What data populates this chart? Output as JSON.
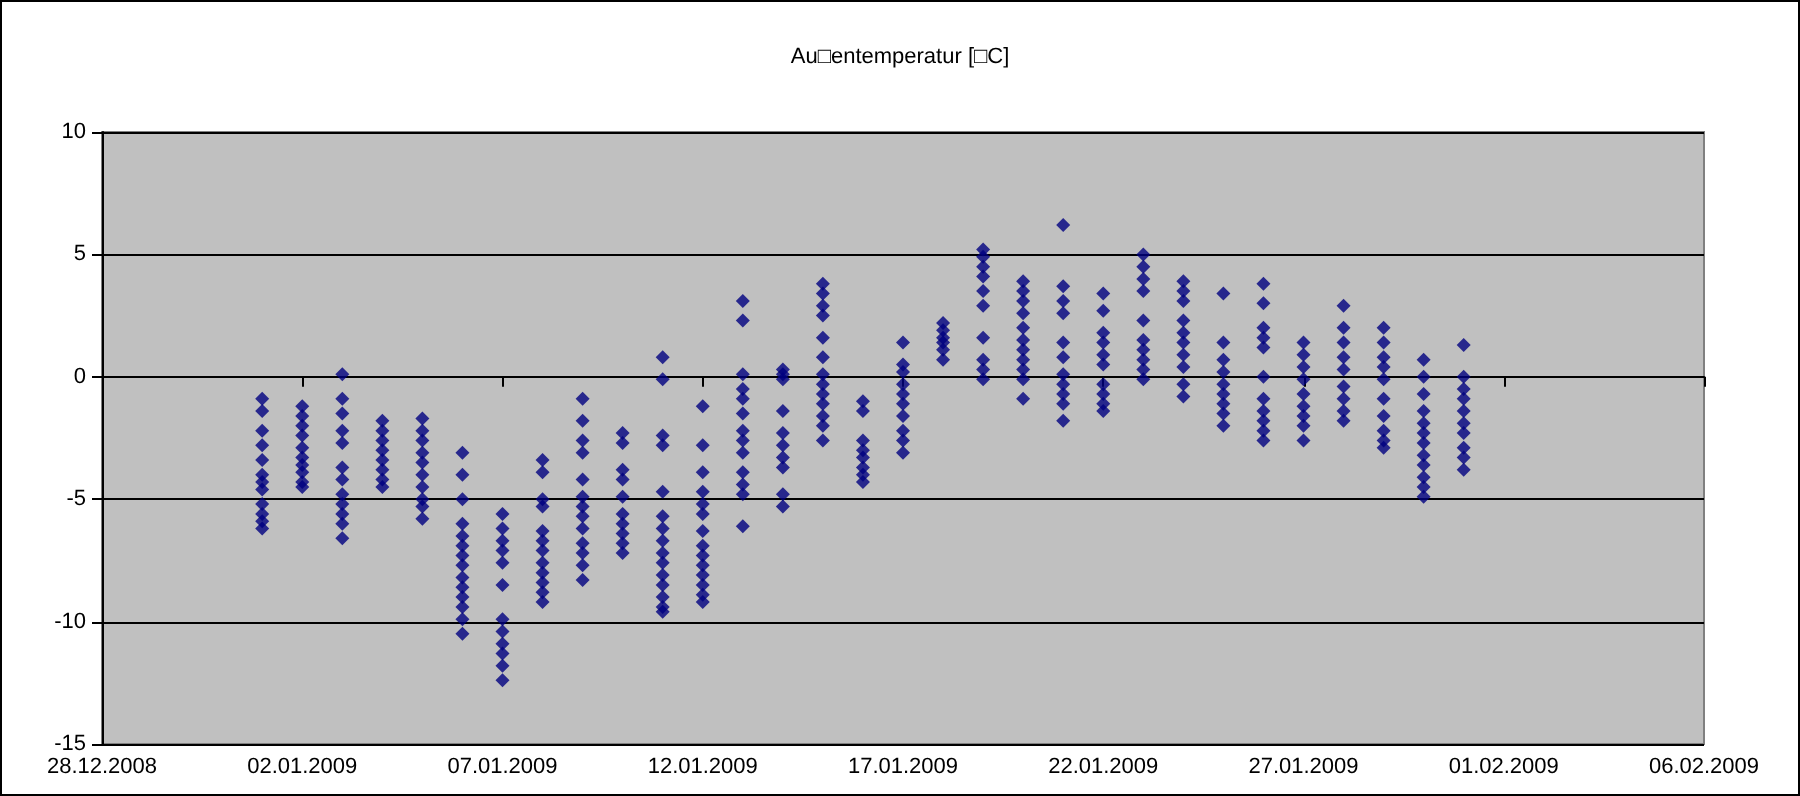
{
  "chart_data": {
    "type": "scatter",
    "title": "Au□entemperatur [□C]",
    "marker": "diamond",
    "grid": "y",
    "xlim": [
      "2008-12-28",
      "2009-02-06"
    ],
    "xticks": [
      {
        "value": "2008-12-28",
        "label": "28.12.2008"
      },
      {
        "value": "2009-01-02",
        "label": "02.01.2009"
      },
      {
        "value": "2009-01-07",
        "label": "07.01.2009"
      },
      {
        "value": "2009-01-12",
        "label": "12.01.2009"
      },
      {
        "value": "2009-01-17",
        "label": "17.01.2009"
      },
      {
        "value": "2009-01-22",
        "label": "22.01.2009"
      },
      {
        "value": "2009-01-27",
        "label": "27.01.2009"
      },
      {
        "value": "2009-02-01",
        "label": "01.02.2009"
      },
      {
        "value": "2009-02-06",
        "label": "06.02.2009"
      }
    ],
    "ylim": [
      -15,
      10
    ],
    "yticks": [
      -15,
      -10,
      -5,
      0,
      5,
      10
    ],
    "series": [
      {
        "color": "#000080",
        "x": [
          "2009-01-01",
          "2009-01-01",
          "2009-01-01",
          "2009-01-01",
          "2009-01-01",
          "2009-01-01",
          "2009-01-01",
          "2009-01-01",
          "2009-01-01",
          "2009-01-01",
          "2009-01-01",
          "2009-01-01"
        ],
        "values": [
          -0.9,
          -1.4,
          -2.2,
          -2.8,
          -3.4,
          -4.0,
          -4.3,
          -4.6,
          -5.2,
          -5.6,
          -5.9,
          -6.2
        ]
      },
      {
        "color": "#000080",
        "x": [
          "2009-01-02",
          "2009-01-02",
          "2009-01-02",
          "2009-01-02",
          "2009-01-02",
          "2009-01-02",
          "2009-01-02",
          "2009-01-02",
          "2009-01-02",
          "2009-01-02"
        ],
        "values": [
          -1.2,
          -1.6,
          -2.0,
          -2.4,
          -2.9,
          -3.3,
          -3.6,
          -3.9,
          -4.3,
          -4.5
        ]
      },
      {
        "color": "#000080",
        "x": [
          "2009-01-03",
          "2009-01-03",
          "2009-01-03",
          "2009-01-03",
          "2009-01-03",
          "2009-01-03",
          "2009-01-03",
          "2009-01-03",
          "2009-01-03",
          "2009-01-03",
          "2009-01-03",
          "2009-01-03"
        ],
        "values": [
          0.1,
          -0.9,
          -1.5,
          -2.2,
          -2.7,
          -3.7,
          -4.2,
          -4.8,
          -5.2,
          -5.6,
          -6.0,
          -6.6
        ]
      },
      {
        "color": "#000080",
        "x": [
          "2009-01-04",
          "2009-01-04",
          "2009-01-04",
          "2009-01-04",
          "2009-01-04",
          "2009-01-04",
          "2009-01-04",
          "2009-01-04"
        ],
        "values": [
          -1.8,
          -2.2,
          -2.6,
          -3.0,
          -3.4,
          -3.8,
          -4.2,
          -4.5
        ]
      },
      {
        "color": "#000080",
        "x": [
          "2009-01-05",
          "2009-01-05",
          "2009-01-05",
          "2009-01-05",
          "2009-01-05",
          "2009-01-05",
          "2009-01-05",
          "2009-01-05",
          "2009-01-05",
          "2009-01-05"
        ],
        "values": [
          -1.7,
          -2.2,
          -2.6,
          -3.1,
          -3.5,
          -4.0,
          -4.5,
          -5.0,
          -5.3,
          -5.8
        ]
      },
      {
        "color": "#000080",
        "x": [
          "2009-01-06",
          "2009-01-06",
          "2009-01-06",
          "2009-01-06",
          "2009-01-06",
          "2009-01-06",
          "2009-01-06",
          "2009-01-06",
          "2009-01-06",
          "2009-01-06",
          "2009-01-06",
          "2009-01-06",
          "2009-01-06",
          "2009-01-06"
        ],
        "values": [
          -3.1,
          -4.0,
          -5.0,
          -6.0,
          -6.5,
          -6.9,
          -7.3,
          -7.7,
          -8.2,
          -8.6,
          -9.0,
          -9.4,
          -9.9,
          -10.5
        ]
      },
      {
        "color": "#000080",
        "x": [
          "2009-01-07",
          "2009-01-07",
          "2009-01-07",
          "2009-01-07",
          "2009-01-07",
          "2009-01-07",
          "2009-01-07",
          "2009-01-07",
          "2009-01-07",
          "2009-01-07",
          "2009-01-07",
          "2009-01-07"
        ],
        "values": [
          -5.6,
          -6.2,
          -6.7,
          -7.1,
          -7.6,
          -8.5,
          -9.9,
          -10.4,
          -10.9,
          -11.3,
          -11.8,
          -12.4
        ]
      },
      {
        "color": "#000080",
        "x": [
          "2009-01-08",
          "2009-01-08",
          "2009-01-08",
          "2009-01-08",
          "2009-01-08",
          "2009-01-08",
          "2009-01-08",
          "2009-01-08",
          "2009-01-08",
          "2009-01-08",
          "2009-01-08",
          "2009-01-08"
        ],
        "values": [
          -3.4,
          -3.9,
          -5.0,
          -5.3,
          -6.3,
          -6.7,
          -7.1,
          -7.6,
          -8.0,
          -8.4,
          -8.8,
          -9.2
        ]
      },
      {
        "color": "#000080",
        "x": [
          "2009-01-09",
          "2009-01-09",
          "2009-01-09",
          "2009-01-09",
          "2009-01-09",
          "2009-01-09",
          "2009-01-09",
          "2009-01-09",
          "2009-01-09",
          "2009-01-09",
          "2009-01-09",
          "2009-01-09",
          "2009-01-09"
        ],
        "values": [
          -0.9,
          -1.8,
          -2.6,
          -3.1,
          -4.2,
          -4.9,
          -5.3,
          -5.7,
          -6.2,
          -6.8,
          -7.2,
          -7.7,
          -8.3
        ]
      },
      {
        "color": "#000080",
        "x": [
          "2009-01-10",
          "2009-01-10",
          "2009-01-10",
          "2009-01-10",
          "2009-01-10",
          "2009-01-10",
          "2009-01-10",
          "2009-01-10",
          "2009-01-10",
          "2009-01-10"
        ],
        "values": [
          -2.3,
          -2.7,
          -3.8,
          -4.2,
          -4.9,
          -5.6,
          -6.0,
          -6.4,
          -6.8,
          -7.2
        ]
      },
      {
        "color": "#000080",
        "x": [
          "2009-01-11",
          "2009-01-11",
          "2009-01-11",
          "2009-01-11",
          "2009-01-11",
          "2009-01-11",
          "2009-01-11",
          "2009-01-11",
          "2009-01-11",
          "2009-01-11",
          "2009-01-11",
          "2009-01-11",
          "2009-01-11",
          "2009-01-11",
          "2009-01-11"
        ],
        "values": [
          0.8,
          -0.1,
          -2.4,
          -2.8,
          -4.7,
          -5.7,
          -6.2,
          -6.7,
          -7.2,
          -7.6,
          -8.1,
          -8.5,
          -9.0,
          -9.4,
          -9.6
        ]
      },
      {
        "color": "#000080",
        "x": [
          "2009-01-12",
          "2009-01-12",
          "2009-01-12",
          "2009-01-12",
          "2009-01-12",
          "2009-01-12",
          "2009-01-12",
          "2009-01-12",
          "2009-01-12",
          "2009-01-12",
          "2009-01-12",
          "2009-01-12",
          "2009-01-12",
          "2009-01-12"
        ],
        "values": [
          -1.2,
          -2.8,
          -3.9,
          -4.7,
          -5.2,
          -5.6,
          -6.3,
          -6.9,
          -7.3,
          -7.7,
          -8.1,
          -8.5,
          -8.9,
          -9.2
        ]
      },
      {
        "color": "#000080",
        "x": [
          "2009-01-13",
          "2009-01-13",
          "2009-01-13",
          "2009-01-13",
          "2009-01-13",
          "2009-01-13",
          "2009-01-13",
          "2009-01-13",
          "2009-01-13",
          "2009-01-13",
          "2009-01-13",
          "2009-01-13",
          "2009-01-13"
        ],
        "values": [
          3.1,
          2.3,
          0.1,
          -0.5,
          -0.9,
          -1.5,
          -2.2,
          -2.6,
          -3.1,
          -3.9,
          -4.4,
          -4.8,
          -6.1
        ]
      },
      {
        "color": "#000080",
        "x": [
          "2009-01-14",
          "2009-01-14",
          "2009-01-14",
          "2009-01-14",
          "2009-01-14",
          "2009-01-14",
          "2009-01-14",
          "2009-01-14",
          "2009-01-14",
          "2009-01-14"
        ],
        "values": [
          0.3,
          0.1,
          -0.1,
          -1.4,
          -2.3,
          -2.8,
          -3.3,
          -3.7,
          -4.8,
          -5.3
        ]
      },
      {
        "color": "#000080",
        "x": [
          "2009-01-15",
          "2009-01-15",
          "2009-01-15",
          "2009-01-15",
          "2009-01-15",
          "2009-01-15",
          "2009-01-15",
          "2009-01-15",
          "2009-01-15",
          "2009-01-15",
          "2009-01-15",
          "2009-01-15",
          "2009-01-15"
        ],
        "values": [
          3.8,
          3.4,
          2.9,
          2.5,
          1.6,
          0.8,
          0.1,
          -0.3,
          -0.7,
          -1.1,
          -1.6,
          -2.0,
          -2.6
        ]
      },
      {
        "color": "#000080",
        "x": [
          "2009-01-16",
          "2009-01-16",
          "2009-01-16",
          "2009-01-16",
          "2009-01-16",
          "2009-01-16",
          "2009-01-16",
          "2009-01-16"
        ],
        "values": [
          -1.0,
          -1.4,
          -2.6,
          -3.0,
          -3.3,
          -3.7,
          -4.0,
          -4.3
        ]
      },
      {
        "color": "#000080",
        "x": [
          "2009-01-17",
          "2009-01-17",
          "2009-01-17",
          "2009-01-17",
          "2009-01-17",
          "2009-01-17",
          "2009-01-17",
          "2009-01-17",
          "2009-01-17",
          "2009-01-17"
        ],
        "values": [
          1.4,
          0.5,
          0.2,
          -0.3,
          -0.7,
          -1.1,
          -1.6,
          -2.2,
          -2.6,
          -3.1
        ]
      },
      {
        "color": "#000080",
        "x": [
          "2009-01-18",
          "2009-01-18",
          "2009-01-18",
          "2009-01-18",
          "2009-01-18",
          "2009-01-18"
        ],
        "values": [
          2.2,
          1.9,
          1.6,
          1.4,
          1.1,
          0.7
        ]
      },
      {
        "color": "#000080",
        "x": [
          "2009-01-19",
          "2009-01-19",
          "2009-01-19",
          "2009-01-19",
          "2009-01-19",
          "2009-01-19",
          "2009-01-19",
          "2009-01-19",
          "2009-01-19",
          "2009-01-19"
        ],
        "values": [
          5.2,
          4.9,
          4.5,
          4.1,
          3.5,
          2.9,
          1.6,
          0.7,
          0.3,
          -0.1
        ]
      },
      {
        "color": "#000080",
        "x": [
          "2009-01-20",
          "2009-01-20",
          "2009-01-20",
          "2009-01-20",
          "2009-01-20",
          "2009-01-20",
          "2009-01-20",
          "2009-01-20",
          "2009-01-20",
          "2009-01-20",
          "2009-01-20"
        ],
        "values": [
          3.9,
          3.5,
          3.1,
          2.6,
          2.0,
          1.5,
          1.1,
          0.7,
          0.3,
          -0.1,
          -0.9
        ]
      },
      {
        "color": "#000080",
        "x": [
          "2009-01-21",
          "2009-01-21",
          "2009-01-21",
          "2009-01-21",
          "2009-01-21",
          "2009-01-21",
          "2009-01-21",
          "2009-01-21",
          "2009-01-21",
          "2009-01-21",
          "2009-01-21"
        ],
        "values": [
          6.2,
          3.7,
          3.1,
          2.6,
          1.4,
          0.8,
          0.1,
          -0.3,
          -0.7,
          -1.1,
          -1.8
        ]
      },
      {
        "color": "#000080",
        "x": [
          "2009-01-22",
          "2009-01-22",
          "2009-01-22",
          "2009-01-22",
          "2009-01-22",
          "2009-01-22",
          "2009-01-22",
          "2009-01-22",
          "2009-01-22",
          "2009-01-22"
        ],
        "values": [
          3.4,
          2.7,
          1.8,
          1.4,
          0.9,
          0.5,
          -0.3,
          -0.7,
          -1.1,
          -1.4
        ]
      },
      {
        "color": "#000080",
        "x": [
          "2009-01-23",
          "2009-01-23",
          "2009-01-23",
          "2009-01-23",
          "2009-01-23",
          "2009-01-23",
          "2009-01-23",
          "2009-01-23",
          "2009-01-23",
          "2009-01-23"
        ],
        "values": [
          5.0,
          4.5,
          4.0,
          3.5,
          2.3,
          1.5,
          1.1,
          0.7,
          0.3,
          -0.1
        ]
      },
      {
        "color": "#000080",
        "x": [
          "2009-01-24",
          "2009-01-24",
          "2009-01-24",
          "2009-01-24",
          "2009-01-24",
          "2009-01-24",
          "2009-01-24",
          "2009-01-24",
          "2009-01-24",
          "2009-01-24"
        ],
        "values": [
          3.9,
          3.5,
          3.1,
          2.3,
          1.8,
          1.4,
          0.9,
          0.4,
          -0.3,
          -0.8
        ]
      },
      {
        "color": "#000080",
        "x": [
          "2009-01-25",
          "2009-01-25",
          "2009-01-25",
          "2009-01-25",
          "2009-01-25",
          "2009-01-25",
          "2009-01-25",
          "2009-01-25",
          "2009-01-25"
        ],
        "values": [
          3.4,
          1.4,
          0.7,
          0.2,
          -0.3,
          -0.7,
          -1.1,
          -1.5,
          -2.0
        ]
      },
      {
        "color": "#000080",
        "x": [
          "2009-01-26",
          "2009-01-26",
          "2009-01-26",
          "2009-01-26",
          "2009-01-26",
          "2009-01-26",
          "2009-01-26",
          "2009-01-26",
          "2009-01-26",
          "2009-01-26",
          "2009-01-26"
        ],
        "values": [
          3.8,
          3.0,
          2.0,
          1.6,
          1.2,
          0.0,
          -0.9,
          -1.4,
          -1.8,
          -2.2,
          -2.6
        ]
      },
      {
        "color": "#000080",
        "x": [
          "2009-01-27",
          "2009-01-27",
          "2009-01-27",
          "2009-01-27",
          "2009-01-27",
          "2009-01-27",
          "2009-01-27",
          "2009-01-27",
          "2009-01-27"
        ],
        "values": [
          1.4,
          0.9,
          0.4,
          -0.1,
          -0.7,
          -1.2,
          -1.6,
          -2.0,
          -2.6
        ]
      },
      {
        "color": "#000080",
        "x": [
          "2009-01-28",
          "2009-01-28",
          "2009-01-28",
          "2009-01-28",
          "2009-01-28",
          "2009-01-28",
          "2009-01-28",
          "2009-01-28",
          "2009-01-28"
        ],
        "values": [
          2.9,
          2.0,
          1.4,
          0.8,
          0.3,
          -0.4,
          -0.9,
          -1.4,
          -1.8
        ]
      },
      {
        "color": "#000080",
        "x": [
          "2009-01-29",
          "2009-01-29",
          "2009-01-29",
          "2009-01-29",
          "2009-01-29",
          "2009-01-29",
          "2009-01-29",
          "2009-01-29",
          "2009-01-29",
          "2009-01-29"
        ],
        "values": [
          2.0,
          1.4,
          0.8,
          0.4,
          -0.1,
          -0.9,
          -1.6,
          -2.2,
          -2.6,
          -2.9
        ]
      },
      {
        "color": "#000080",
        "x": [
          "2009-01-30",
          "2009-01-30",
          "2009-01-30",
          "2009-01-30",
          "2009-01-30",
          "2009-01-30",
          "2009-01-30",
          "2009-01-30",
          "2009-01-30",
          "2009-01-30",
          "2009-01-30",
          "2009-01-30"
        ],
        "values": [
          0.7,
          0.0,
          -0.7,
          -1.4,
          -1.9,
          -2.3,
          -2.7,
          -3.2,
          -3.6,
          -4.1,
          -4.5,
          -4.9
        ]
      },
      {
        "color": "#000080",
        "x": [
          "2009-01-31",
          "2009-01-31",
          "2009-01-31",
          "2009-01-31",
          "2009-01-31",
          "2009-01-31",
          "2009-01-31",
          "2009-01-31",
          "2009-01-31",
          "2009-01-31"
        ],
        "values": [
          1.3,
          0.0,
          -0.5,
          -0.9,
          -1.4,
          -1.9,
          -2.3,
          -2.9,
          -3.3,
          -3.8
        ]
      }
    ]
  }
}
